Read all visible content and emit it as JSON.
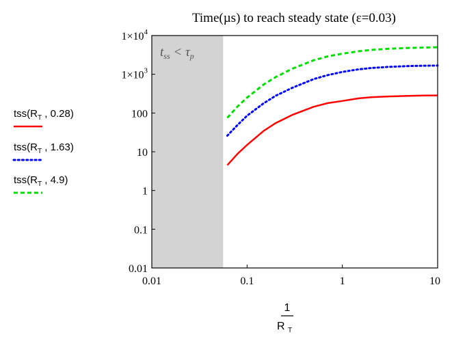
{
  "chart_data": {
    "type": "line",
    "title": "Time(µs) to reach steady state (ε=0.03)",
    "xlabel": {
      "numerator": "1",
      "denominator": "R",
      "denominator_sub": "T"
    },
    "x_scale": "log",
    "y_scale": "log",
    "xlim": [
      0.01,
      10
    ],
    "ylim": [
      0.01,
      10000
    ],
    "x_ticks": [
      {
        "value": 0.01,
        "label": "0.01"
      },
      {
        "value": 0.1,
        "label": "0.1"
      },
      {
        "value": 1,
        "label": "1"
      },
      {
        "value": 10,
        "label": "10"
      }
    ],
    "y_ticks": [
      {
        "value": 0.01,
        "label": "0.01"
      },
      {
        "value": 0.1,
        "label": "0.1"
      },
      {
        "value": 1,
        "label": "1"
      },
      {
        "value": 10,
        "label": "10"
      },
      {
        "value": 100,
        "label": "100"
      },
      {
        "value": 1000,
        "label": "1×10",
        "exp": "3"
      },
      {
        "value": 10000,
        "label": "1×10",
        "exp": "4"
      }
    ],
    "shaded_region": {
      "x": [
        0.01,
        0.056
      ],
      "color": "#d3d3d3",
      "label": "t",
      "label_sub": "ss",
      "label_op": " < τ",
      "label_sub2": "p"
    },
    "grid": false,
    "legend_position": "left",
    "series": [
      {
        "name": "tss(R_T , 0.28)",
        "legend": {
          "fn": "tss",
          "arg": "R",
          "arg_sub": "T",
          "param": "0.28"
        },
        "color": "#ff0000",
        "style": "solid",
        "x": [
          0.062,
          0.08,
          0.1,
          0.15,
          0.2,
          0.3,
          0.5,
          0.7,
          1,
          1.5,
          2,
          3,
          5,
          7,
          10
        ],
        "y": [
          4.5,
          9,
          15,
          35,
          55,
          90,
          145,
          180,
          205,
          240,
          255,
          268,
          278,
          282,
          285
        ]
      },
      {
        "name": "tss(R_T , 1.63)",
        "legend": {
          "fn": "tss",
          "arg": "R",
          "arg_sub": "T",
          "param": "1.63"
        },
        "color": "#0000ff",
        "style": "dotted",
        "x": [
          0.062,
          0.08,
          0.1,
          0.15,
          0.2,
          0.3,
          0.5,
          0.7,
          1,
          1.5,
          2,
          3,
          5,
          7,
          10
        ],
        "y": [
          26,
          50,
          85,
          180,
          280,
          450,
          750,
          950,
          1150,
          1350,
          1450,
          1550,
          1630,
          1660,
          1680
        ]
      },
      {
        "name": "tss(R_T , 4.9)",
        "legend": {
          "fn": "tss",
          "arg": "R",
          "arg_sub": "T",
          "param": "4.9"
        },
        "color": "#00dd00",
        "style": "dashed",
        "x": [
          0.062,
          0.08,
          0.1,
          0.15,
          0.2,
          0.3,
          0.5,
          0.7,
          1,
          1.5,
          2,
          3,
          5,
          7,
          10
        ],
        "y": [
          75,
          150,
          250,
          550,
          850,
          1400,
          2300,
          2900,
          3400,
          3950,
          4250,
          4550,
          4800,
          4900,
          5000
        ]
      }
    ]
  }
}
